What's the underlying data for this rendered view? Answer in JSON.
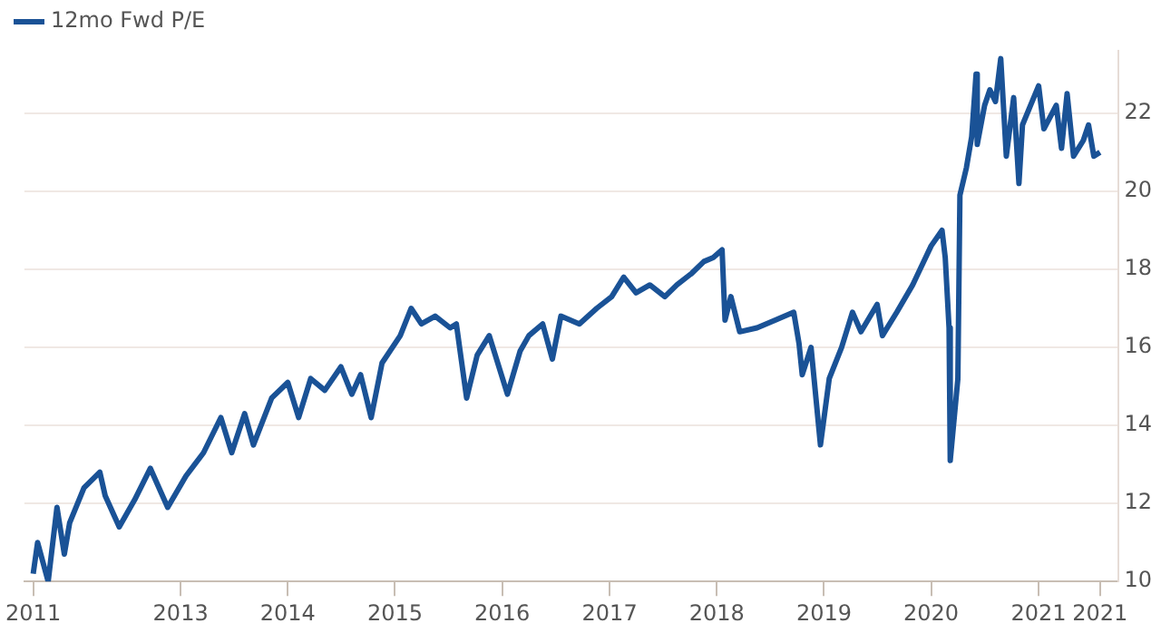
{
  "chart_data": {
    "type": "line",
    "legend": "top left",
    "grid": "y",
    "marker": "none",
    "line_style": "solid",
    "xlim": [
      "2011-07-19",
      "2021-10-01"
    ],
    "xticks": [
      {
        "value": "2011-08-18",
        "label": "2011"
      },
      "2013",
      "2014",
      "2015",
      "2016",
      "2017",
      "2018",
      "2019",
      "2020",
      "2021",
      {
        "value": "2021-07-29",
        "label": "2021"
      }
    ],
    "ylim": [
      10,
      23.6
    ],
    "yticks": [
      10,
      12,
      14,
      16,
      18,
      20,
      22
    ],
    "series": [
      {
        "name": "12mo Fwd P/E",
        "color": "#1a5296",
        "x": [
          "2011-08-18",
          "2011-09-02",
          "2011-10-08",
          "2011-11-07",
          "2011-12-02",
          "2011-12-20",
          "2012-02-07",
          "2012-04-01",
          "2012-04-19",
          "2012-06-06",
          "2012-07-29",
          "2012-09-20",
          "2012-11-18",
          "2013-01-19",
          "2013-03-20",
          "2013-05-18",
          "2013-06-24",
          "2013-08-07",
          "2013-09-06",
          "2013-11-07",
          "2014-01-01",
          "2014-02-07",
          "2014-03-20",
          "2014-05-07",
          "2014-07-01",
          "2014-08-07",
          "2014-09-06",
          "2014-10-12",
          "2014-11-18",
          "2015-01-19",
          "2015-02-25",
          "2015-04-01",
          "2015-05-18",
          "2015-07-08",
          "2015-07-29",
          "2015-09-02",
          "2015-10-08",
          "2015-11-18",
          "2016-01-19",
          "2016-03-02",
          "2016-04-01",
          "2016-05-18",
          "2016-06-20",
          "2016-07-19",
          "2016-09-20",
          "2016-11-18",
          "2017-01-08",
          "2017-02-18",
          "2017-04-01",
          "2017-05-18",
          "2017-07-08",
          "2017-08-18",
          "2017-10-08",
          "2017-11-18",
          "2017-12-20",
          "2018-01-19",
          "2018-01-29",
          "2018-02-18",
          "2018-03-20",
          "2018-05-18",
          "2018-07-19",
          "2018-09-20",
          "2018-10-08",
          "2018-10-19",
          "2018-11-18",
          "2018-12-20",
          "2019-01-19",
          "2019-03-02",
          "2019-04-08",
          "2019-05-07",
          "2019-07-01",
          "2019-07-19",
          "2019-09-06",
          "2019-10-30",
          "2020-01-01",
          "2020-02-07",
          "2020-02-18",
          "2020-03-02",
          "2020-03-06",
          "2020-04-01",
          "2020-04-08",
          "2020-04-30",
          "2020-05-18",
          "2020-06-02",
          "2020-06-06",
          "2020-07-01",
          "2020-07-19",
          "2020-08-07",
          "2020-08-25",
          "2020-09-13",
          "2020-10-08",
          "2020-10-26",
          "2020-11-07",
          "2021-01-01",
          "2021-01-19",
          "2021-03-02",
          "2021-03-20",
          "2021-04-08",
          "2021-04-30",
          "2021-06-02",
          "2021-06-20",
          "2021-07-08",
          "2021-07-29"
        ],
        "values": [
          10.2,
          11.0,
          10.0,
          11.9,
          10.7,
          11.5,
          12.4,
          12.8,
          12.2,
          11.4,
          12.1,
          12.9,
          11.9,
          12.7,
          13.3,
          14.2,
          13.3,
          14.3,
          13.5,
          14.7,
          15.1,
          14.2,
          15.2,
          14.9,
          15.5,
          14.8,
          15.3,
          14.2,
          15.6,
          16.3,
          17.0,
          16.6,
          16.8,
          16.5,
          16.6,
          14.7,
          15.8,
          16.3,
          14.8,
          15.9,
          16.3,
          16.6,
          15.7,
          16.8,
          16.6,
          17.0,
          17.3,
          17.8,
          17.4,
          17.6,
          17.3,
          17.6,
          17.9,
          18.2,
          18.3,
          18.5,
          16.7,
          17.3,
          16.4,
          16.5,
          16.7,
          16.9,
          16.1,
          15.3,
          16.0,
          13.5,
          15.2,
          16.0,
          16.9,
          16.4,
          17.1,
          16.3,
          16.9,
          17.6,
          18.6,
          19.0,
          18.3,
          16.5,
          13.1,
          15.2,
          19.9,
          20.6,
          21.4,
          23.0,
          21.2,
          22.2,
          22.6,
          22.3,
          23.4,
          20.9,
          22.4,
          20.2,
          21.7,
          22.7,
          21.6,
          22.2,
          21.1,
          22.5,
          20.9,
          21.3,
          21.7,
          20.9,
          21.0
        ]
      }
    ]
  }
}
